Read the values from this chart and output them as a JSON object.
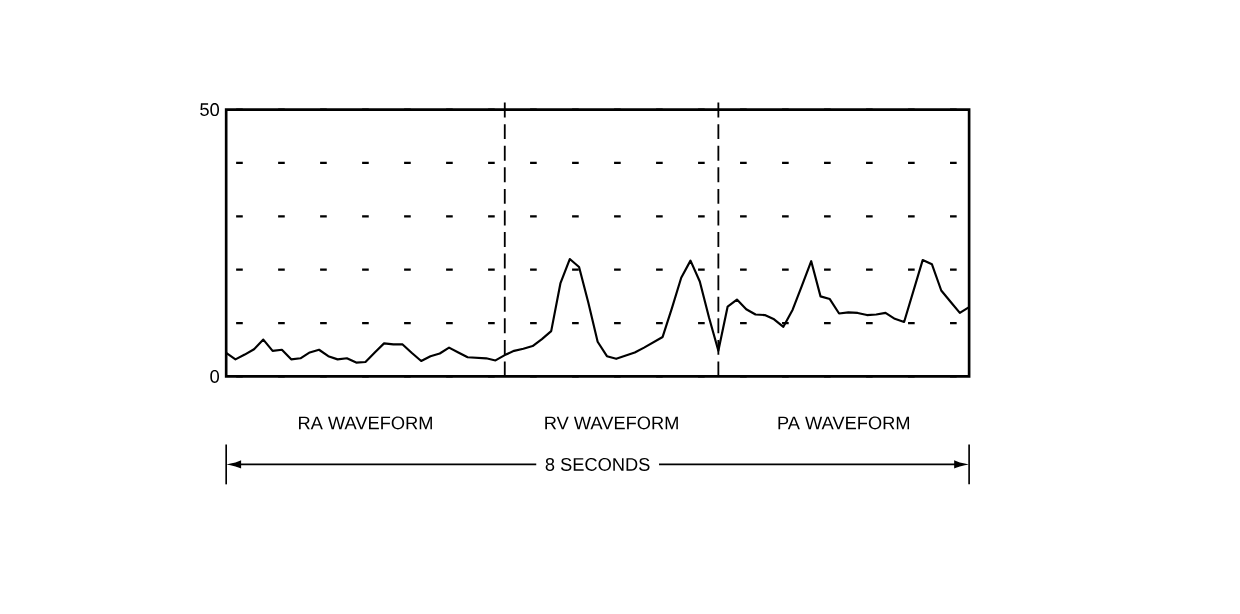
{
  "chart_data": {
    "type": "line",
    "color": "#000000",
    "ylim": [
      0,
      50
    ],
    "yticks": [
      0,
      {
        "value": 10,
        "label": null
      },
      {
        "value": 20,
        "label": null
      },
      {
        "value": 30,
        "label": null
      },
      {
        "value": 40,
        "label": null
      },
      50
    ],
    "grid": "y",
    "tick_labels": "y",
    "categories": [
      null,
      null,
      null,
      null,
      null,
      null,
      null,
      null,
      null,
      null,
      null,
      null,
      null,
      null,
      null,
      null,
      null,
      null,
      null,
      null,
      null,
      null,
      null,
      null,
      null,
      null,
      null,
      null,
      null,
      null,
      null,
      null,
      null,
      null,
      null,
      null,
      null,
      null,
      null,
      null,
      null,
      null,
      null,
      null,
      null,
      null,
      null,
      null,
      null,
      null,
      null,
      null,
      null,
      null,
      null,
      null,
      null,
      null,
      null,
      null,
      null,
      null,
      null,
      null,
      null,
      null,
      null,
      null,
      null,
      null,
      null,
      null,
      null,
      null,
      null,
      null,
      null,
      null,
      null,
      null,
      null
    ],
    "values": [
      4.4,
      3.2,
      4.1,
      5.1,
      6.9,
      4.8,
      5.0,
      3.2,
      3.4,
      4.5,
      5.0,
      3.8,
      3.2,
      3.4,
      2.6,
      2.7,
      4.5,
      6.2,
      6.0,
      6.0,
      4.4,
      2.9,
      3.8,
      4.3,
      5.4,
      4.5,
      3.6,
      3.5,
      3.4,
      3.0,
      4.0,
      4.8,
      5.2,
      5.7,
      7.0,
      8.5,
      17.5,
      22.0,
      20.5,
      13.8,
      6.5,
      3.8,
      3.3,
      3.9,
      4.5,
      5.4,
      6.4,
      7.4,
      12.8,
      18.5,
      21.7,
      17.8,
      11.0,
      4.8,
      13.1,
      14.4,
      12.6,
      11.6,
      11.5,
      10.7,
      9.3,
      12.5,
      17.0,
      21.6,
      15.0,
      14.5,
      11.8,
      12.0,
      11.9,
      11.5,
      11.6,
      11.9,
      10.8,
      10.2,
      16.0,
      21.8,
      21.0,
      16.1,
      14.0,
      11.9,
      13.0
    ],
    "annotations": [
      "RA WAVEFORM",
      "RV WAVEFORM",
      "PA WAVEFORM",
      "8 SECONDS"
    ]
  }
}
